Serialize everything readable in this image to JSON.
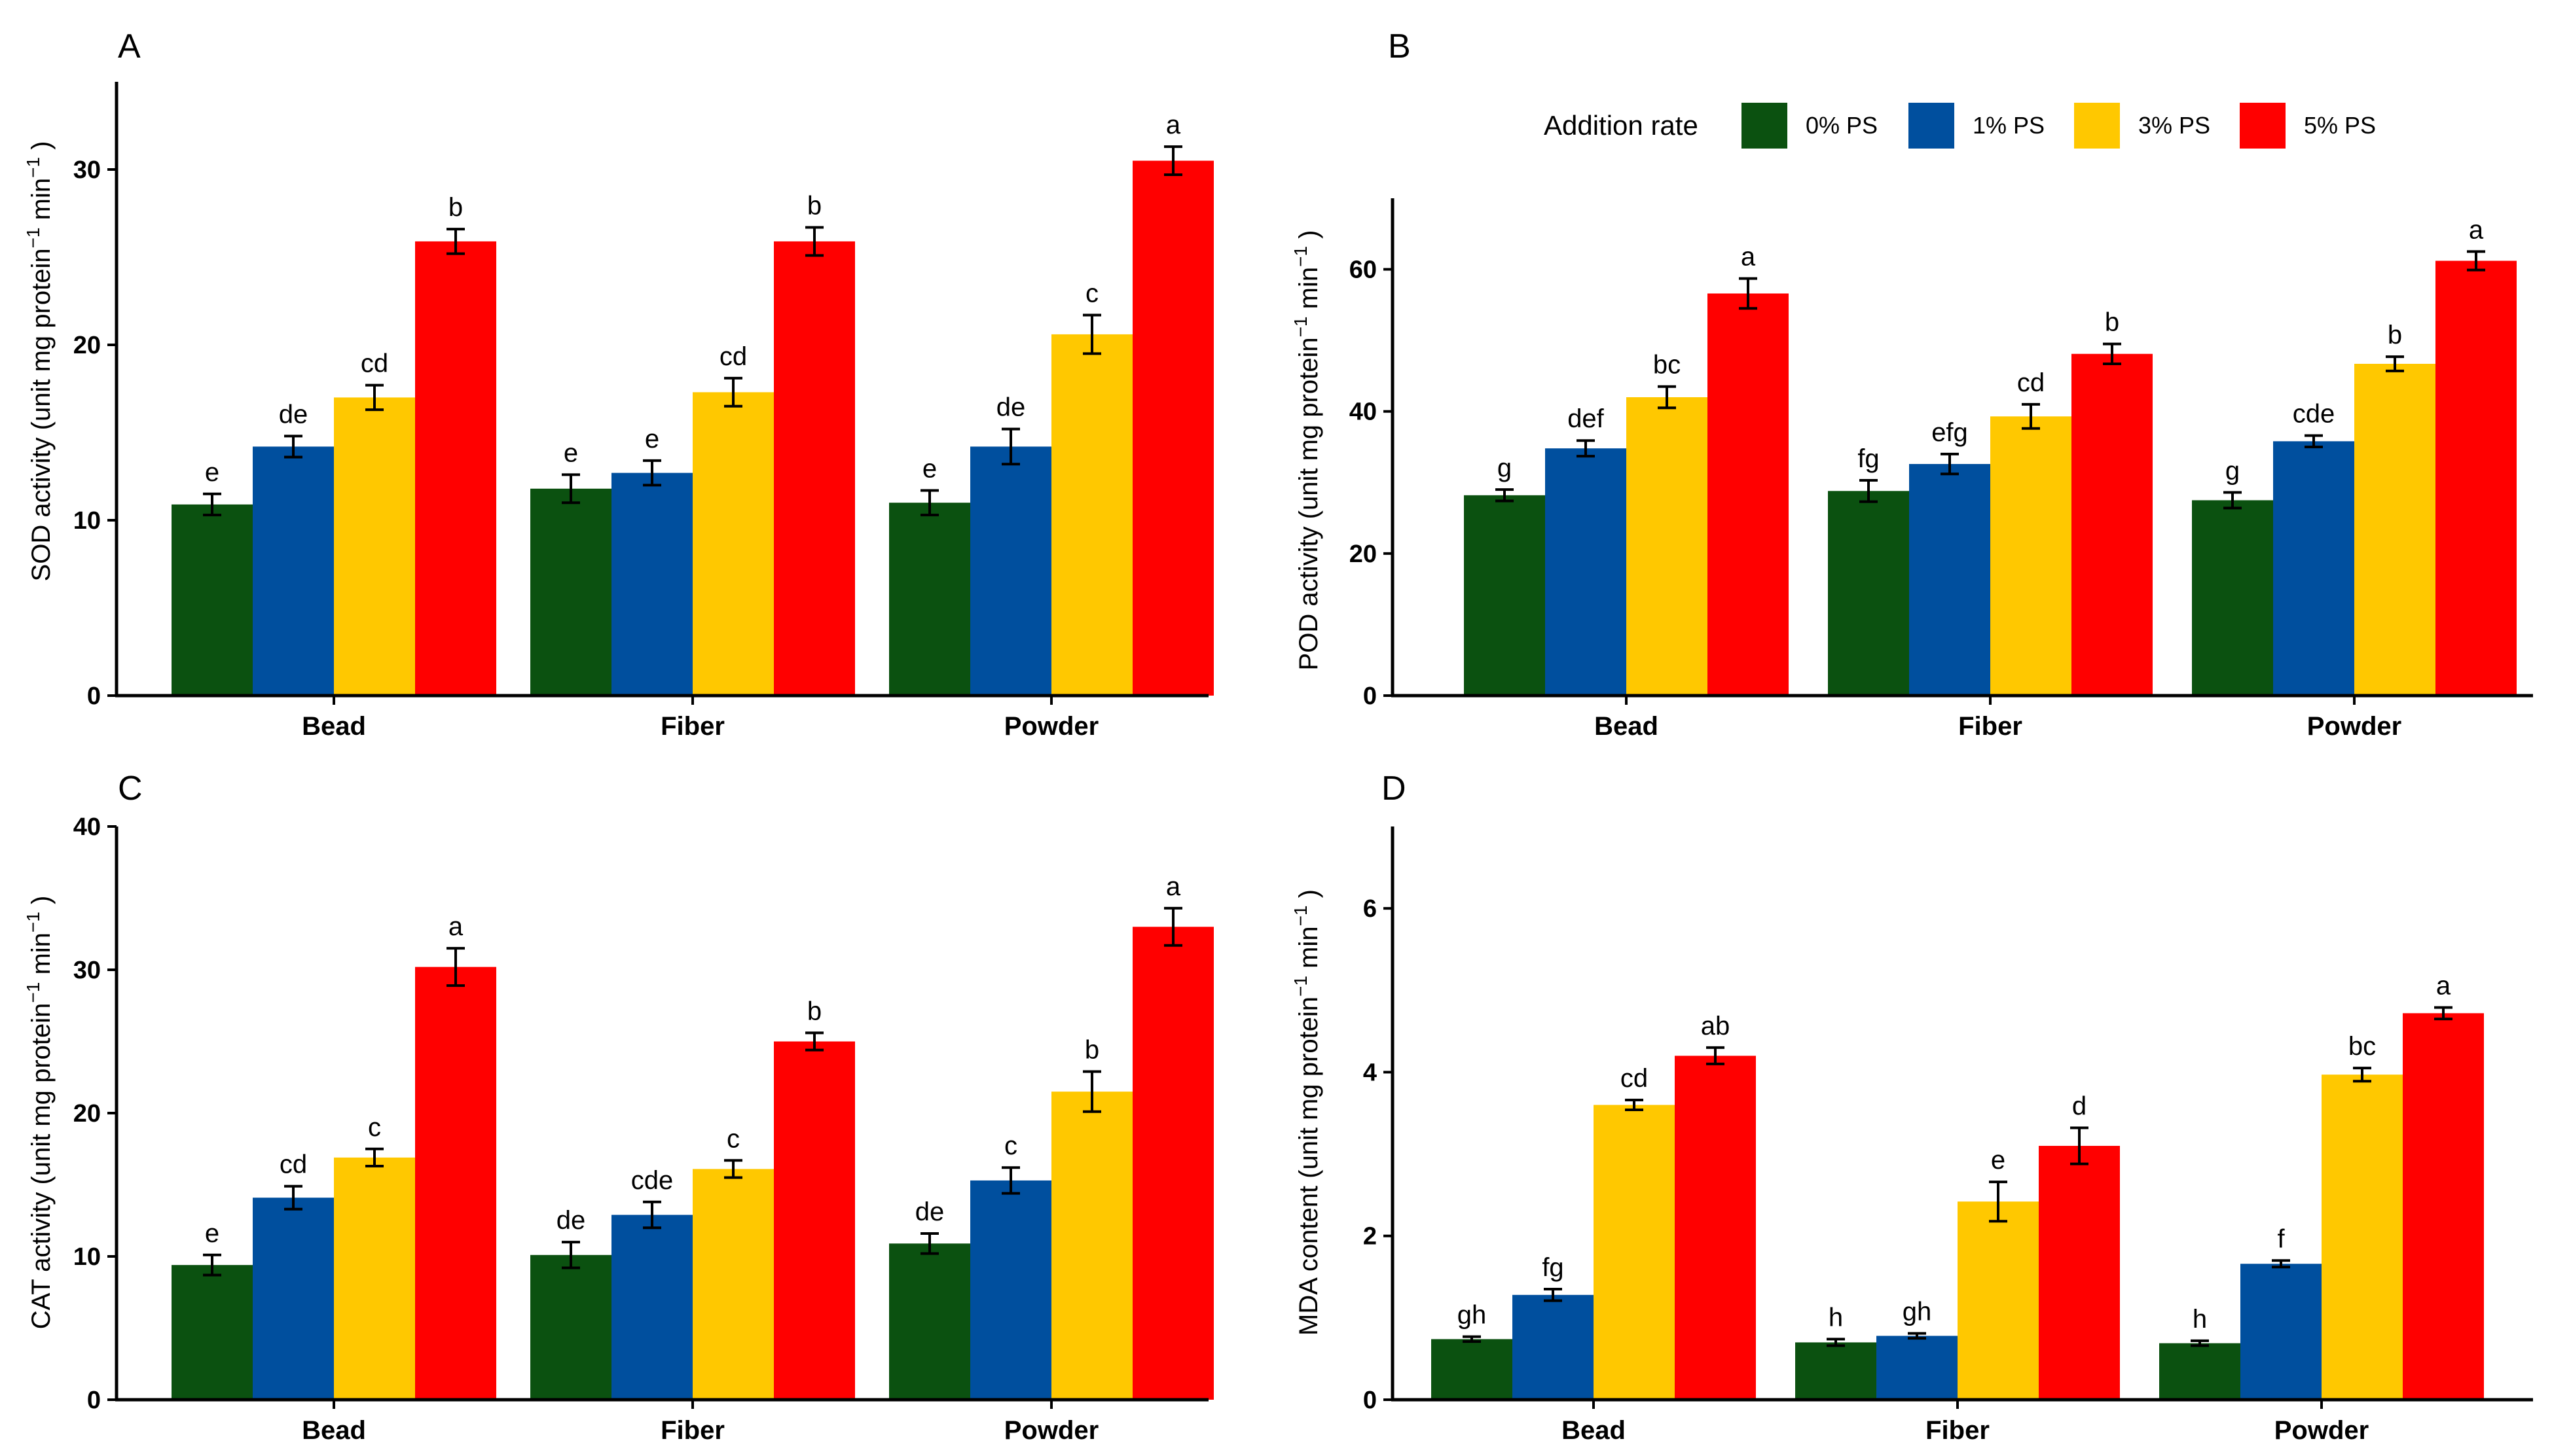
{
  "legend": {
    "title": "Addition rate",
    "items": [
      {
        "label": "0% PS",
        "color": "#0B5110"
      },
      {
        "label": "1% PS",
        "color": "#004F9E"
      },
      {
        "label": "3% PS",
        "color": "#FFC800"
      },
      {
        "label": "5% PS",
        "color": "#FF0000"
      }
    ]
  },
  "chart_data": [
    {
      "panel": "A",
      "type": "bar",
      "ylabel_main": "SOD activity (unit mg protein",
      "ylabel_sup1": "−1",
      "ylabel_mid": " min",
      "ylabel_sup2": "−1",
      "ylabel_end": " )",
      "ylim": [
        0,
        35
      ],
      "yticks": [
        0,
        10,
        20,
        30
      ],
      "categories": [
        "Bead",
        "Fiber",
        "Powder"
      ],
      "series": [
        {
          "name": "0% PS",
          "values": [
            10.9,
            11.8,
            11.0
          ],
          "errors": [
            0.6,
            0.8,
            0.7
          ],
          "labels": [
            "e",
            "e",
            "e"
          ]
        },
        {
          "name": "1% PS",
          "values": [
            14.2,
            12.7,
            14.2
          ],
          "errors": [
            0.6,
            0.7,
            1.0
          ],
          "labels": [
            "de",
            "e",
            "de"
          ]
        },
        {
          "name": "3% PS",
          "values": [
            17.0,
            17.3,
            20.6
          ],
          "errors": [
            0.7,
            0.8,
            1.1
          ],
          "labels": [
            "cd",
            "cd",
            "c"
          ]
        },
        {
          "name": "5% PS",
          "values": [
            25.9,
            25.9,
            30.5
          ],
          "errors": [
            0.7,
            0.8,
            0.8
          ],
          "labels": [
            "b",
            "b",
            "a"
          ]
        }
      ]
    },
    {
      "panel": "B",
      "type": "bar",
      "ylabel_main": "POD activity (unit mg protein",
      "ylabel_sup1": "−1",
      "ylabel_mid": " min",
      "ylabel_sup2": "−1",
      "ylabel_end": " )",
      "ylim": [
        0,
        70
      ],
      "yticks": [
        0,
        20,
        40,
        60
      ],
      "categories": [
        "Bead",
        "Fiber",
        "Powder"
      ],
      "series": [
        {
          "name": "0% PS",
          "values": [
            28.2,
            28.8,
            27.5
          ],
          "errors": [
            0.8,
            1.5,
            1.1
          ],
          "labels": [
            "g",
            "fg",
            "g"
          ]
        },
        {
          "name": "1% PS",
          "values": [
            34.8,
            32.6,
            35.8
          ],
          "errors": [
            1.1,
            1.4,
            0.8
          ],
          "labels": [
            "def",
            "efg",
            "cde"
          ]
        },
        {
          "name": "3% PS",
          "values": [
            42.0,
            39.3,
            46.7
          ],
          "errors": [
            1.5,
            1.7,
            1.0
          ],
          "labels": [
            "bc",
            "cd",
            "b"
          ]
        },
        {
          "name": "5% PS",
          "values": [
            56.6,
            48.1,
            61.2
          ],
          "errors": [
            2.1,
            1.4,
            1.3
          ],
          "labels": [
            "a",
            "b",
            "a"
          ]
        }
      ]
    },
    {
      "panel": "C",
      "type": "bar",
      "ylabel_main": "CAT activity (unit mg protein",
      "ylabel_sup1": "−1",
      "ylabel_mid": " min",
      "ylabel_sup2": "−1",
      "ylabel_end": " )",
      "ylim": [
        0,
        40
      ],
      "yticks": [
        0,
        10,
        20,
        30,
        40
      ],
      "categories": [
        "Bead",
        "Fiber",
        "Powder"
      ],
      "series": [
        {
          "name": "0% PS",
          "values": [
            9.4,
            10.1,
            10.9
          ],
          "errors": [
            0.7,
            0.9,
            0.7
          ],
          "labels": [
            "e",
            "de",
            "de"
          ]
        },
        {
          "name": "1% PS",
          "values": [
            14.1,
            12.9,
            15.3
          ],
          "errors": [
            0.8,
            0.9,
            0.9
          ],
          "labels": [
            "cd",
            "cde",
            "c"
          ]
        },
        {
          "name": "3% PS",
          "values": [
            16.9,
            16.1,
            21.5
          ],
          "errors": [
            0.6,
            0.6,
            1.4
          ],
          "labels": [
            "c",
            "c",
            "b"
          ]
        },
        {
          "name": "5% PS",
          "values": [
            30.2,
            25.0,
            33.0
          ],
          "errors": [
            1.3,
            0.6,
            1.3
          ],
          "labels": [
            "a",
            "b",
            "a"
          ]
        }
      ]
    },
    {
      "panel": "D",
      "type": "bar",
      "ylabel_main": "MDA content (unit mg protein",
      "ylabel_sup1": "−1",
      "ylabel_mid": " min",
      "ylabel_sup2": "−1",
      "ylabel_end": " )",
      "ylim": [
        0,
        7
      ],
      "yticks": [
        0,
        2,
        4,
        6
      ],
      "categories": [
        "Bead",
        "Fiber",
        "Powder"
      ],
      "series": [
        {
          "name": "0% PS",
          "values": [
            0.74,
            0.7,
            0.69
          ],
          "errors": [
            0.03,
            0.04,
            0.03
          ],
          "labels": [
            "gh",
            "h",
            "h"
          ]
        },
        {
          "name": "1% PS",
          "values": [
            1.28,
            0.78,
            1.66
          ],
          "errors": [
            0.07,
            0.03,
            0.04
          ],
          "labels": [
            "fg",
            "gh",
            "f"
          ]
        },
        {
          "name": "3% PS",
          "values": [
            3.6,
            2.42,
            3.97
          ],
          "errors": [
            0.06,
            0.24,
            0.08
          ],
          "labels": [
            "cd",
            "e",
            "bc"
          ]
        },
        {
          "name": "5% PS",
          "values": [
            4.2,
            3.1,
            4.72
          ],
          "errors": [
            0.1,
            0.22,
            0.07
          ],
          "labels": [
            "ab",
            "d",
            "a"
          ]
        }
      ]
    }
  ]
}
